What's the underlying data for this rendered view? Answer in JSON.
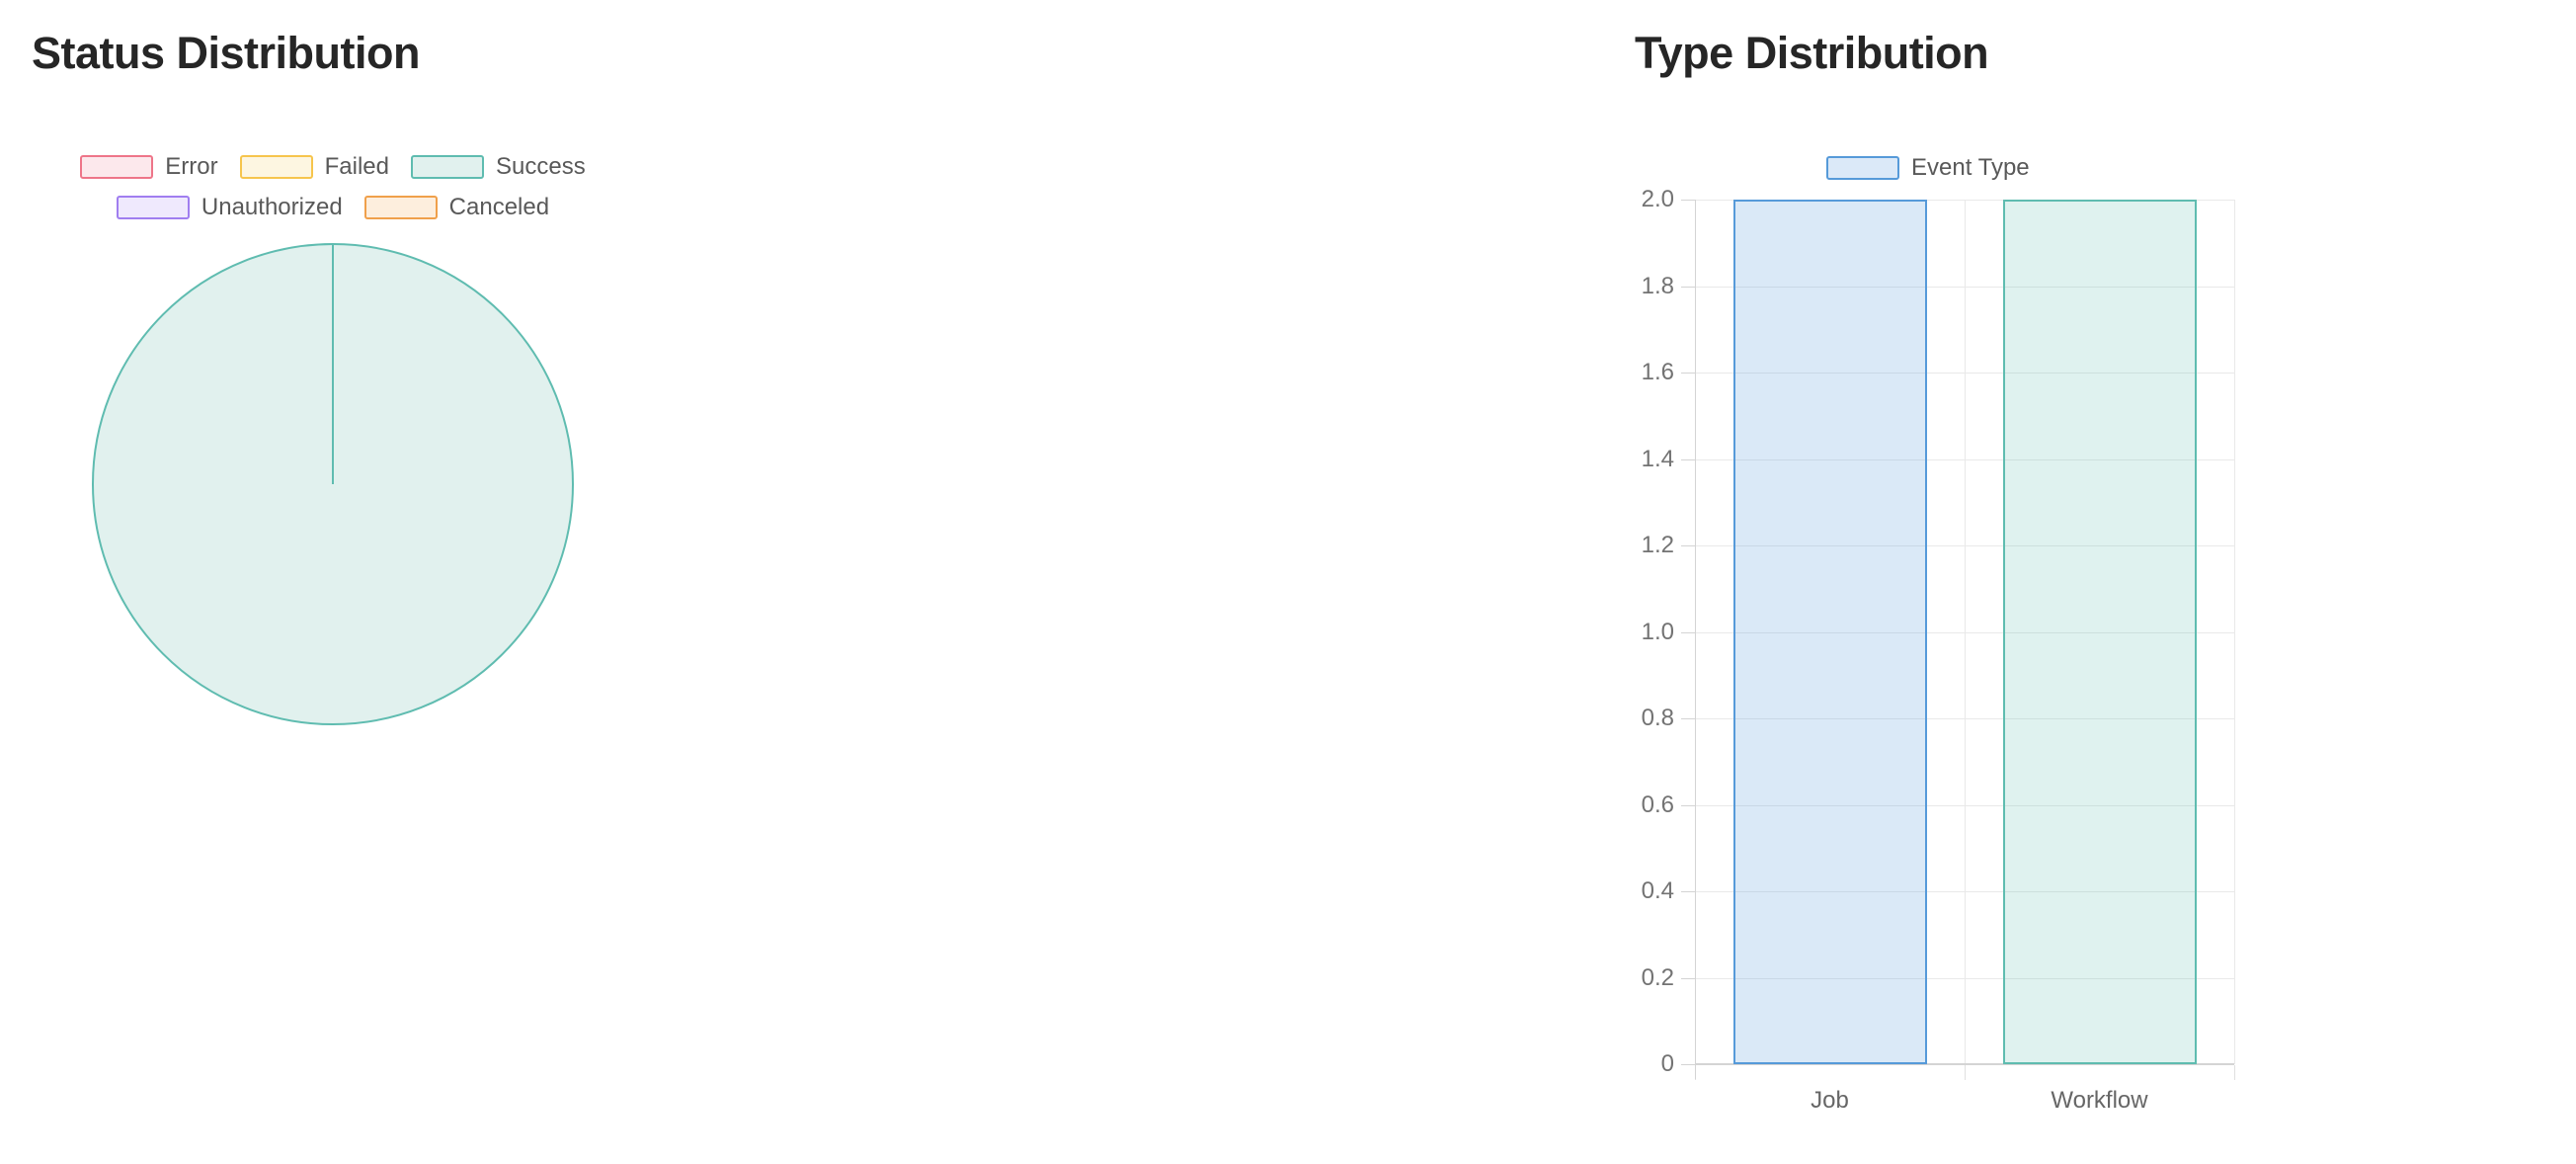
{
  "status_chart": {
    "title": "Status Distribution",
    "legend": [
      {
        "label": "Error",
        "fill": "#fce8ec",
        "border": "#ee7589"
      },
      {
        "label": "Failed",
        "fill": "#fdf6e1",
        "border": "#f6c54d"
      },
      {
        "label": "Success",
        "fill": "#e1f1ee",
        "border": "#5fbcb0"
      },
      {
        "label": "Unauthorized",
        "fill": "#efe9fd",
        "border": "#a07ef0"
      },
      {
        "label": "Canceled",
        "fill": "#fdeedd",
        "border": "#f0a04b"
      }
    ],
    "legend_rows": [
      [
        0,
        1,
        2
      ],
      [
        3,
        4
      ]
    ],
    "chart_data": {
      "type": "pie",
      "labels": [
        "Error",
        "Failed",
        "Success",
        "Unauthorized",
        "Canceled"
      ],
      "values_percent": [
        0,
        0,
        100,
        0,
        0
      ],
      "title": "Status Distribution",
      "legend_position": "top",
      "note": "Success slice fills the entire pie; slice boundary line at 12 o'clock"
    }
  },
  "type_chart": {
    "title": "Type Distribution",
    "legend": [
      {
        "label": "Event Type",
        "fill": "#dbe9f8",
        "border": "#569ad9"
      }
    ],
    "chart_data": {
      "type": "bar",
      "series_name": "Event Type",
      "categories": [
        "Job",
        "Workflow"
      ],
      "values": [
        2,
        2
      ],
      "ylim": [
        0,
        2
      ],
      "ytick_labels": [
        "0",
        "0.2",
        "0.4",
        "0.6",
        "0.8",
        "1.0",
        "1.2",
        "1.4",
        "1.6",
        "1.8",
        "2.0"
      ],
      "grid": true,
      "legend_position": "top",
      "bar_colors": [
        {
          "fill": "rgba(86,154,217,0.22)",
          "border": "#569ad9"
        },
        {
          "fill": "rgba(95,188,176,0.20)",
          "border": "#5fbcb0"
        }
      ]
    }
  }
}
